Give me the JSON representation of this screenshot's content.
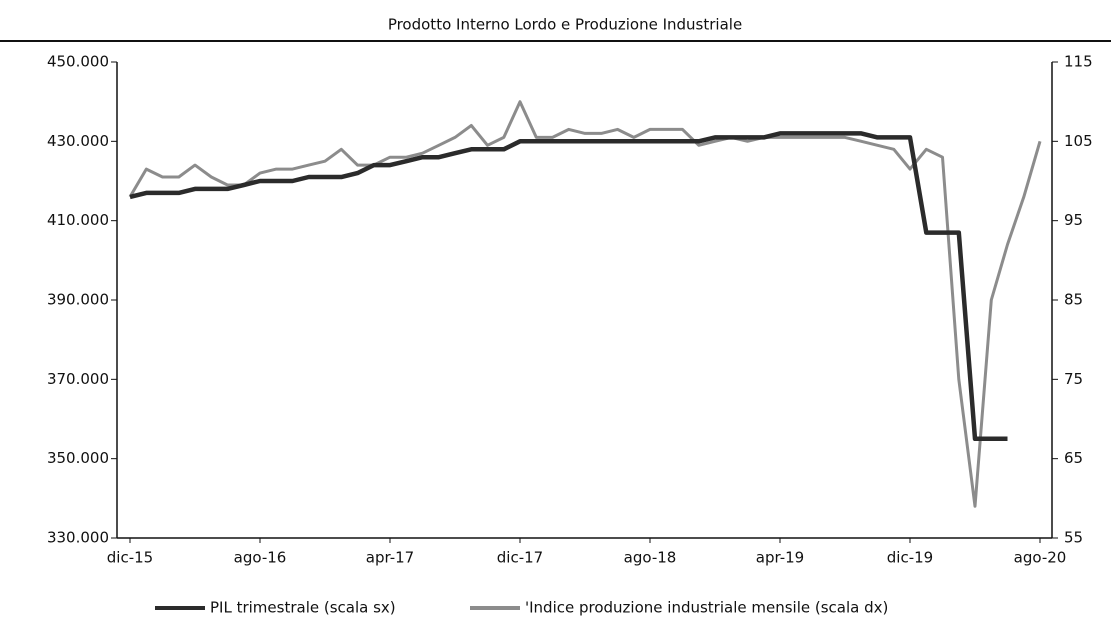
{
  "chart_data": {
    "type": "line",
    "title": "Prodotto Interno Lordo e Produzione Industriale",
    "categories": [
      "dic-15",
      null,
      null,
      null,
      null,
      null,
      null,
      null,
      "ago-16",
      null,
      null,
      null,
      null,
      null,
      null,
      null,
      "apr-17",
      null,
      null,
      null,
      null,
      null,
      null,
      null,
      "dic-17",
      null,
      null,
      null,
      null,
      null,
      null,
      null,
      "ago-18",
      null,
      null,
      null,
      null,
      null,
      null,
      null,
      "apr-19",
      null,
      null,
      null,
      null,
      null,
      null,
      null,
      "dic-19",
      null,
      null,
      null,
      null,
      null,
      null,
      null,
      "ago-20"
    ],
    "series": [
      {
        "name": "PIL trimestrale (scala sx)",
        "color": "#2b2b2b",
        "values": [
          416000,
          417000,
          417000,
          417000,
          418000,
          418000,
          418000,
          419000,
          420000,
          420000,
          420000,
          421000,
          421000,
          421000,
          422000,
          424000,
          424000,
          425000,
          426000,
          426000,
          427000,
          428000,
          428000,
          428000,
          430000,
          430000,
          430000,
          430000,
          430000,
          430000,
          430000,
          430000,
          430000,
          430000,
          430000,
          430000,
          431000,
          431000,
          431000,
          431000,
          432000,
          432000,
          432000,
          432000,
          432000,
          432000,
          431000,
          431000,
          431000,
          407000,
          407000,
          407000,
          355000,
          355000,
          355000,
          null,
          null
        ]
      },
      {
        "name": "'Indice produzione industriale mensile (scala dx)",
        "color": "#8c8c8c",
        "axis": "y2",
        "values": [
          98,
          101.5,
          100.5,
          100.5,
          102,
          100.5,
          99.5,
          99.5,
          101,
          101.5,
          101.5,
          102,
          102.5,
          104,
          102,
          102,
          103,
          103,
          103.5,
          104.5,
          105.5,
          107,
          104.5,
          105.5,
          110,
          105.5,
          105.5,
          106.5,
          106,
          106,
          106.5,
          105.5,
          106.5,
          106.5,
          106.5,
          104.5,
          105,
          105.5,
          105,
          105.5,
          105.5,
          105.5,
          105.5,
          105.5,
          105.5,
          105,
          104.5,
          104,
          101.5,
          104,
          103,
          75,
          59,
          85,
          92,
          98,
          105
        ]
      }
    ],
    "ylim": [
      330000,
      450000
    ],
    "yticks": [
      {
        "value": 330000,
        "label": "330.000"
      },
      {
        "value": 350000,
        "label": "350.000"
      },
      {
        "value": 370000,
        "label": "370.000"
      },
      {
        "value": 390000,
        "label": "390.000"
      },
      {
        "value": 410000,
        "label": "410.000"
      },
      {
        "value": 430000,
        "label": "430.000"
      },
      {
        "value": 450000,
        "label": "450.000"
      }
    ],
    "y2lim": [
      55,
      115
    ],
    "y2ticks": [
      55,
      65,
      75,
      85,
      95,
      105,
      115
    ]
  }
}
